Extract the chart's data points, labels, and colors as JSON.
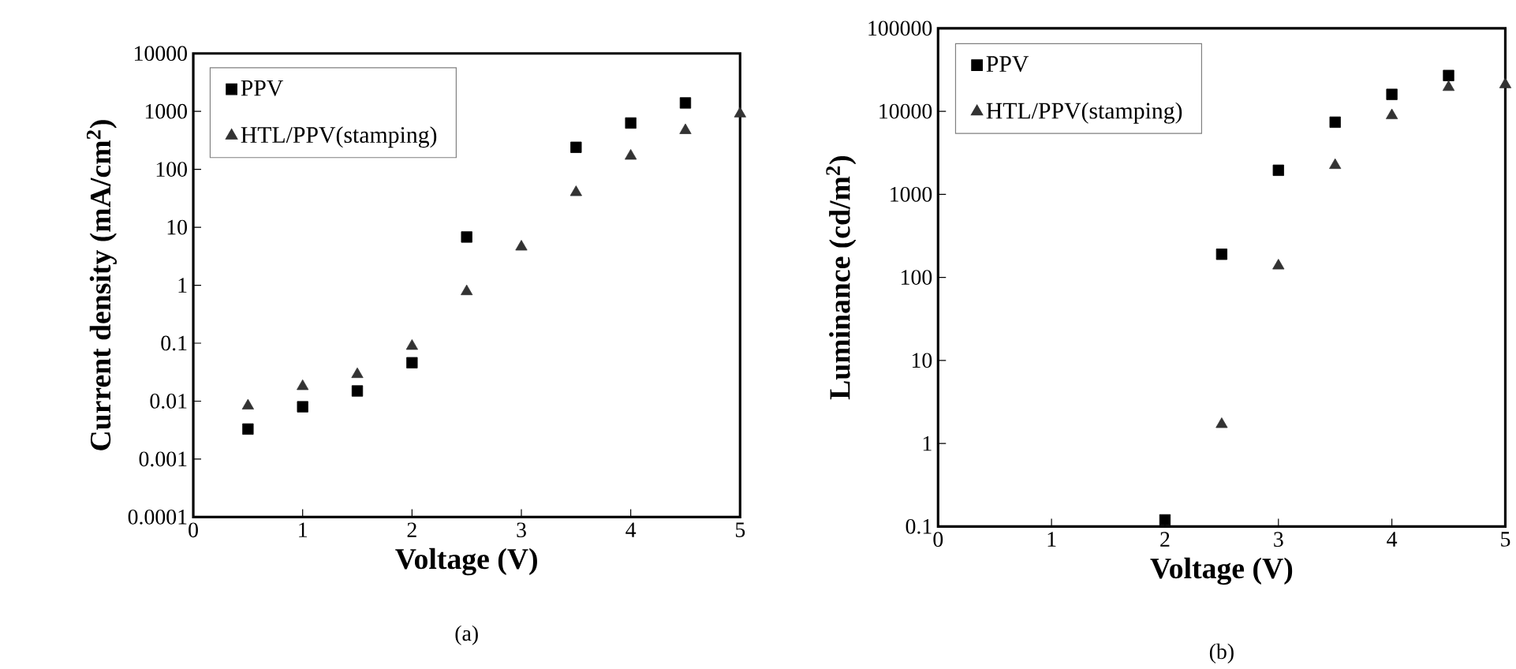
{
  "chart_data": [
    {
      "type": "scatter",
      "xlabel": "Voltage (V)",
      "ylabel": "Current density (mA/cm$^{2}$)",
      "log": "y",
      "xlim": [
        0,
        5
      ],
      "xticks": [
        0,
        1,
        2,
        3,
        4,
        5
      ],
      "ylim": [
        0.0001,
        10000
      ],
      "yticks": [
        0.0001,
        0.001,
        0.01,
        0.1,
        1,
        10,
        100,
        1000,
        10000
      ],
      "legend": "top left",
      "grid": false,
      "annotations": [
        "(a)"
      ],
      "series": [
        {
          "name": "PPV",
          "color": "#000000",
          "marker": "square",
          "x": [
            0.5,
            1.0,
            1.5,
            2.0,
            2.5,
            3.5,
            4.0,
            4.5
          ],
          "values": [
            0.0033,
            0.008,
            0.015,
            0.046,
            6.8,
            240,
            630,
            1400
          ]
        },
        {
          "name": "HTL/PPV(stamping)",
          "color": "#333333",
          "marker": "triangle",
          "x": [
            0.5,
            1.0,
            1.5,
            2.0,
            2.5,
            3.0,
            3.5,
            4.0,
            4.5,
            5.0
          ],
          "values": [
            0.0083,
            0.018,
            0.029,
            0.089,
            0.78,
            4.6,
            40,
            170,
            470,
            910
          ]
        }
      ]
    },
    {
      "type": "scatter",
      "xlabel": "Voltage (V)",
      "ylabel": "Luminance (cd/m$^{2}$)",
      "log": "y",
      "xlim": [
        0,
        5
      ],
      "xticks": [
        0,
        1,
        2,
        3,
        4,
        5
      ],
      "ylim": [
        0.1,
        100000
      ],
      "yticks": [
        0.1,
        1,
        10,
        100,
        1000,
        10000,
        100000
      ],
      "legend": "top left",
      "grid": false,
      "annotations": [
        "(b)"
      ],
      "series": [
        {
          "name": "PPV",
          "color": "#000000",
          "marker": "square",
          "x": [
            2.0,
            2.5,
            3.0,
            3.5,
            4.0,
            4.5
          ],
          "values": [
            0.12,
            190,
            1950,
            7400,
            16000,
            27000
          ]
        },
        {
          "name": "HTL/PPV(stamping)",
          "color": "#333333",
          "marker": "triangle",
          "x": [
            2.5,
            3.0,
            3.5,
            4.0,
            4.5,
            5.0
          ],
          "values": [
            1.7,
            138,
            2240,
            8900,
            19500,
            21000
          ]
        }
      ]
    }
  ]
}
